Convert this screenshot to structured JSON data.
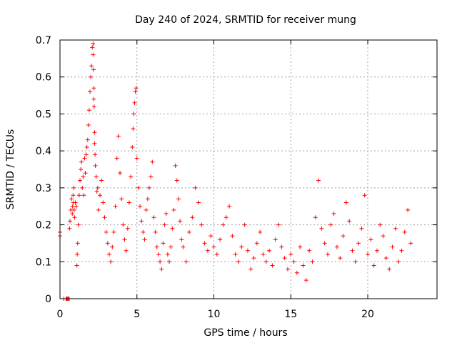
{
  "chart_data": {
    "type": "scatter",
    "title": "Day 240 of 2024, SRMTID for receiver mung",
    "xlabel": "GPS time / hours",
    "ylabel": "SRMTID / TECUs",
    "xlim": [
      0,
      24.5
    ],
    "ylim": [
      0,
      0.7
    ],
    "xticks": [
      0,
      5,
      10,
      15,
      20
    ],
    "xtick_labels": [
      "0",
      "5",
      "10",
      "15",
      "20"
    ],
    "yticks": [
      0,
      0.1,
      0.2,
      0.3,
      0.4,
      0.5,
      0.6,
      0.7
    ],
    "ytick_labels": [
      "0",
      "0.1",
      "0.2",
      "0.3",
      "0.4",
      "0.5",
      "0.6",
      "0.7"
    ],
    "grid": true,
    "marker": "plus",
    "color": "#ff0000",
    "series": [
      {
        "name": "SRMTID",
        "x": [
          0.0,
          0.0,
          0.25,
          0.4,
          0.42,
          0.45,
          0.5,
          0.55,
          0.6,
          0.62,
          0.65,
          0.7,
          0.75,
          0.8,
          0.82,
          0.85,
          0.88,
          0.9,
          0.92,
          0.95,
          1.0,
          1.05,
          1.1,
          1.12,
          1.15,
          1.2,
          1.25,
          1.3,
          1.35,
          1.4,
          1.45,
          1.5,
          1.55,
          1.6,
          1.65,
          1.7,
          1.75,
          1.8,
          1.85,
          1.9,
          1.95,
          2.0,
          2.05,
          2.1,
          2.15,
          2.15,
          2.18,
          2.2,
          2.2,
          2.22,
          2.25,
          2.25,
          2.28,
          2.3,
          2.35,
          2.4,
          2.45,
          2.5,
          2.6,
          2.7,
          2.8,
          2.9,
          3.0,
          3.1,
          3.2,
          3.3,
          3.4,
          3.5,
          3.6,
          3.7,
          3.8,
          3.9,
          4.0,
          4.1,
          4.2,
          4.3,
          4.4,
          4.5,
          4.6,
          4.7,
          4.75,
          4.8,
          4.85,
          4.9,
          4.95,
          5.0,
          5.1,
          5.2,
          5.3,
          5.4,
          5.5,
          5.6,
          5.7,
          5.8,
          5.9,
          6.0,
          6.1,
          6.2,
          6.3,
          6.4,
          6.5,
          6.6,
          6.7,
          6.8,
          6.9,
          7.0,
          7.1,
          7.2,
          7.3,
          7.4,
          7.5,
          7.6,
          7.7,
          7.8,
          7.9,
          8.0,
          8.2,
          8.4,
          8.6,
          8.8,
          9.0,
          9.2,
          9.4,
          9.6,
          9.8,
          10.0,
          10.2,
          10.4,
          10.6,
          10.8,
          11.0,
          11.2,
          11.4,
          11.6,
          11.8,
          12.0,
          12.2,
          12.4,
          12.6,
          12.8,
          13.0,
          13.2,
          13.4,
          13.6,
          13.8,
          14.0,
          14.2,
          14.4,
          14.6,
          14.8,
          15.0,
          15.2,
          15.4,
          15.6,
          15.8,
          16.0,
          16.2,
          16.4,
          16.6,
          16.8,
          17.0,
          17.2,
          17.4,
          17.6,
          17.8,
          18.0,
          18.2,
          18.4,
          18.6,
          18.8,
          19.0,
          19.2,
          19.4,
          19.6,
          19.8,
          20.0,
          20.2,
          20.4,
          20.6,
          20.8,
          21.0,
          21.2,
          21.4,
          21.6,
          21.8,
          22.0,
          22.2,
          22.4,
          22.6,
          22.8
        ],
        "y": [
          0.17,
          0.18,
          0.0,
          0.0,
          0.0,
          0.0,
          0.0,
          0.0,
          0.0,
          0.19,
          0.21,
          0.24,
          0.27,
          0.23,
          0.25,
          0.28,
          0.26,
          0.3,
          0.24,
          0.22,
          0.26,
          0.25,
          0.09,
          0.12,
          0.15,
          0.2,
          0.28,
          0.32,
          0.35,
          0.37,
          0.3,
          0.33,
          0.28,
          0.38,
          0.34,
          0.39,
          0.41,
          0.43,
          0.47,
          0.51,
          0.56,
          0.6,
          0.63,
          0.68,
          0.66,
          0.69,
          0.62,
          0.57,
          0.54,
          0.52,
          0.45,
          0.42,
          0.39,
          0.36,
          0.33,
          0.29,
          0.3,
          0.24,
          0.28,
          0.32,
          0.26,
          0.22,
          0.18,
          0.15,
          0.12,
          0.1,
          0.14,
          0.18,
          0.25,
          0.38,
          0.44,
          0.34,
          0.27,
          0.2,
          0.16,
          0.13,
          0.19,
          0.26,
          0.33,
          0.41,
          0.46,
          0.5,
          0.53,
          0.56,
          0.57,
          0.38,
          0.3,
          0.25,
          0.21,
          0.18,
          0.16,
          0.24,
          0.27,
          0.3,
          0.33,
          0.37,
          0.22,
          0.18,
          0.14,
          0.12,
          0.1,
          0.08,
          0.15,
          0.2,
          0.23,
          0.12,
          0.1,
          0.14,
          0.19,
          0.24,
          0.36,
          0.32,
          0.27,
          0.21,
          0.16,
          0.14,
          0.1,
          0.18,
          0.22,
          0.3,
          0.26,
          0.2,
          0.15,
          0.13,
          0.17,
          0.14,
          0.12,
          0.16,
          0.2,
          0.22,
          0.25,
          0.17,
          0.12,
          0.1,
          0.14,
          0.2,
          0.13,
          0.08,
          0.11,
          0.15,
          0.18,
          0.12,
          0.1,
          0.13,
          0.09,
          0.16,
          0.2,
          0.14,
          0.11,
          0.08,
          0.12,
          0.1,
          0.07,
          0.14,
          0.09,
          0.05,
          0.13,
          0.1,
          0.22,
          0.32,
          0.19,
          0.15,
          0.12,
          0.2,
          0.23,
          0.14,
          0.11,
          0.17,
          0.26,
          0.21,
          0.13,
          0.1,
          0.15,
          0.19,
          0.28,
          0.12,
          0.16,
          0.09,
          0.13,
          0.2,
          0.17,
          0.11,
          0.08,
          0.14,
          0.19,
          0.1,
          0.13,
          0.18,
          0.24,
          0.15
        ]
      }
    ]
  }
}
